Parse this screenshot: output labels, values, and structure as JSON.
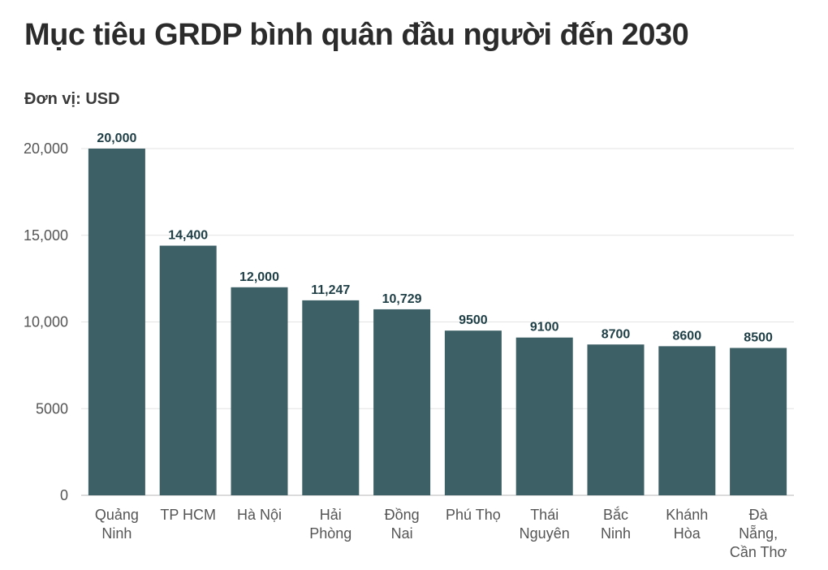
{
  "title": "Mục tiêu GRDP bình quân đầu người đến 2030",
  "unit_label": "Đơn vị: USD",
  "colors": {
    "bar": "#3d6066",
    "data_label": "#1f3f47",
    "title": "#2b2b2b"
  },
  "chart_data": {
    "type": "bar",
    "title": "Mục tiêu GRDP bình quân đầu người đến 2030",
    "ylabel": "",
    "xlabel": "",
    "ylim": [
      0,
      20000
    ],
    "grid": true,
    "yticks": [
      0,
      5000,
      10000,
      15000,
      20000
    ],
    "ytick_labels": [
      "0",
      "5000",
      "10,000",
      "15,000",
      "20,000"
    ],
    "categories": [
      [
        "Quảng",
        "Ninh"
      ],
      [
        "TP HCM"
      ],
      [
        "Hà Nội"
      ],
      [
        "Hải",
        "Phòng"
      ],
      [
        "Đồng",
        "Nai"
      ],
      [
        "Phú Thọ"
      ],
      [
        "Thái",
        "Nguyên"
      ],
      [
        "Bắc",
        "Ninh"
      ],
      [
        "Khánh",
        "Hòa"
      ],
      [
        "Đà",
        "Nẵng,",
        "Cần Thơ"
      ]
    ],
    "values": [
      20000,
      14400,
      12000,
      11247,
      10729,
      9500,
      9100,
      8700,
      8600,
      8500
    ],
    "value_labels": [
      "20,000",
      "14,400",
      "12,000",
      "11,247",
      "10,729",
      "9500",
      "9100",
      "8700",
      "8600",
      "8500"
    ]
  }
}
